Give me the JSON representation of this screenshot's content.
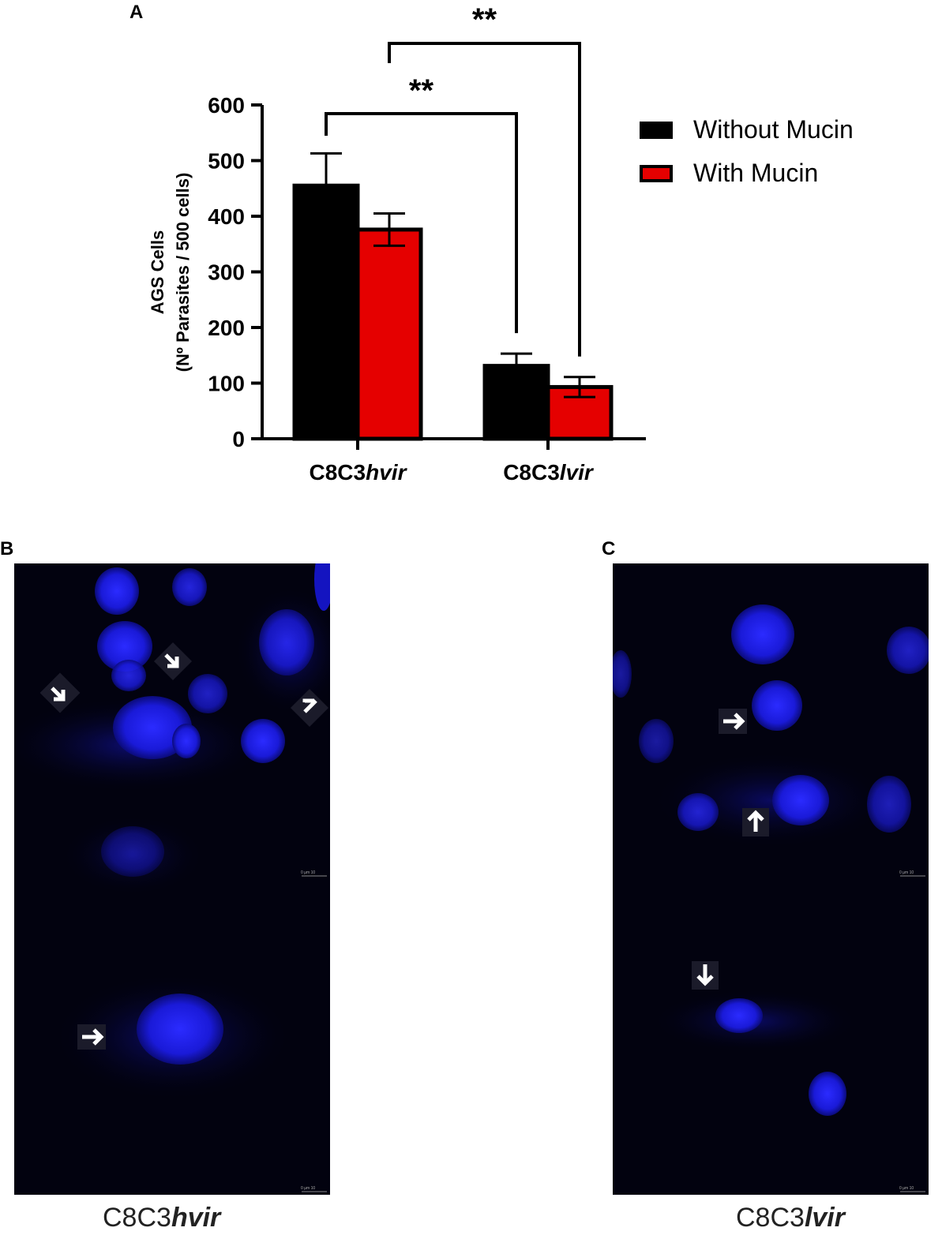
{
  "panels": {
    "a_label": "A",
    "b_label": "B",
    "c_label": "C"
  },
  "chart_data": {
    "type": "bar",
    "categories": [
      {
        "prefix": "C8C3",
        "suffix": "hvir"
      },
      {
        "prefix": "C8C3",
        "suffix": "lvir"
      }
    ],
    "series": [
      {
        "name": "Without Mucin",
        "color": "#000000",
        "values": [
          455,
          131
        ],
        "errors": [
          58,
          22
        ]
      },
      {
        "name": "With Mucin",
        "color": "#e50000",
        "values": [
          376,
          93
        ],
        "errors": [
          29,
          18
        ]
      }
    ],
    "ylabel_line1": "AGS Cells",
    "ylabel_line2": "(Nº Parasites / 500 cells)",
    "ylim": [
      0,
      600
    ],
    "yticks": [
      0,
      100,
      200,
      300,
      400,
      500,
      600
    ],
    "legend_position": "top-right",
    "significance": [
      {
        "label": "**",
        "from": "Without Mucin / C8C3hvir",
        "to": "Without Mucin / C8C3lvir"
      },
      {
        "label": "**",
        "from": "With Mucin / C8C3hvir",
        "to": "With Mucin / C8C3lvir"
      }
    ]
  },
  "micrographs": {
    "b_caption_prefix": "C8C3",
    "b_caption_suffix": "hvir",
    "c_caption_prefix": "C8C3",
    "c_caption_suffix": "lvir",
    "scale_bar_text": "0   µm   10"
  }
}
